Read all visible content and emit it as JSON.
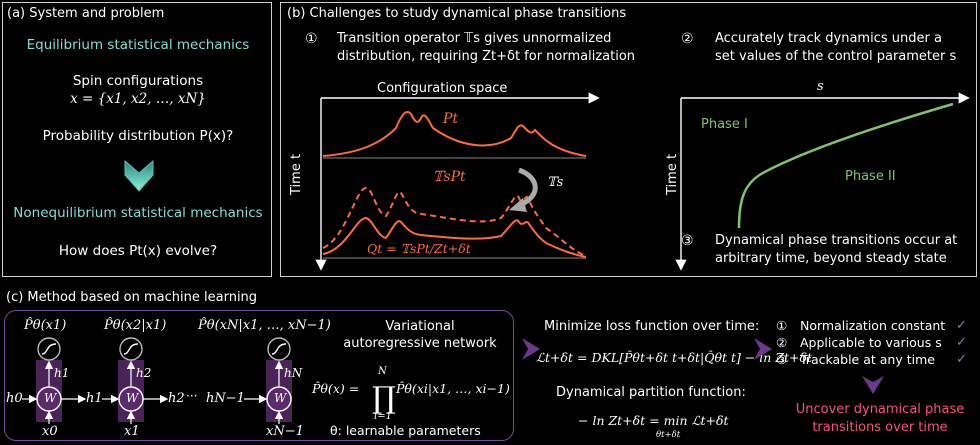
{
  "panel_a": {
    "title": "(a) System and problem",
    "equilibrium": "Equilibrium statistical mechanics",
    "spin_label": "Spin configurations",
    "spin_formula": "x = {x1, x2, …, xN}",
    "prob_question": "Probability distribution P(x)?",
    "nonequilibrium": "Nonequilibrium statistical mechanics",
    "evolve_question": "How does Pt(x) evolve?"
  },
  "panel_b": {
    "title": "(b) Challenges to study dynamical phase transitions",
    "c1_num": "①",
    "c1_line1": "Transition operator 𝕋s gives unnormalized",
    "c1_line2": "distribution, requiring Zt+δt for normalization",
    "c2_num": "②",
    "c2_line1": "Accurately track dynamics under a",
    "c2_line2": "set values of the control parameter s",
    "c3_num": "③",
    "c3_line1": "Dynamical phase transitions occur at",
    "c3_line2": "arbitrary time, beyond steady state",
    "config_space": "Configuration space",
    "time_axis": "Time t",
    "pt_label": "Pt",
    "tspt_label": "𝕋sPt",
    "qt_label": "Qt = 𝕋sPt/Zt+δt",
    "ts_label": "𝕋s",
    "s_axis": "s",
    "phase1": "Phase I",
    "phase2": "Phase II"
  },
  "panel_c": {
    "title": "(c) Method based on machine learning",
    "p1": "P̂θ(x1)",
    "p2": "P̂θ(x2|x1)",
    "pn": "P̂θ(xN|x1, …, xN−1)",
    "h0": "h0",
    "h1": "h1",
    "h2": "h2",
    "hn1": "hN−1",
    "h1b": "h1",
    "h2b": "h2",
    "hnb": "hN",
    "x0": "x0",
    "x1": "x1",
    "xn1": "xN−1",
    "w": "W",
    "dots": "···",
    "var_line1": "Variational",
    "var_line2": "autoregressive network",
    "product_lhs": "P̂θ(x) =",
    "product_rhs": "P̂θ(xi|x1, …, xi−1)",
    "prod_top": "N",
    "prod_bot": "i=1",
    "theta_text": "θ: learnable parameters",
    "minimize": "Minimize loss function over time:",
    "loss_formula": "ℒt+δt = DKL[P̂θt+δt t+δt|Q̂θt t] − ln Zt+δt",
    "partition_label": "Dynamical partition function:",
    "partition_formula": "− ln Zt+δt = min ℒt+δt",
    "partition_sub": "θt+δt",
    "bullets": [
      {
        "num": "①",
        "text": "Normalization constant"
      },
      {
        "num": "②",
        "text": "Applicable to various s"
      },
      {
        "num": "③",
        "text": "Trackable at any time"
      }
    ],
    "conclusion_line1": "Uncover dynamical phase",
    "conclusion_line2": "transitions over time"
  },
  "colors": {
    "cyan": "#7fe0d8",
    "orange": "#ff6a3d",
    "green": "#7fc36a",
    "purple": "#6a3a8a",
    "pink": "#ff4f7b",
    "check": "#a070b0"
  }
}
